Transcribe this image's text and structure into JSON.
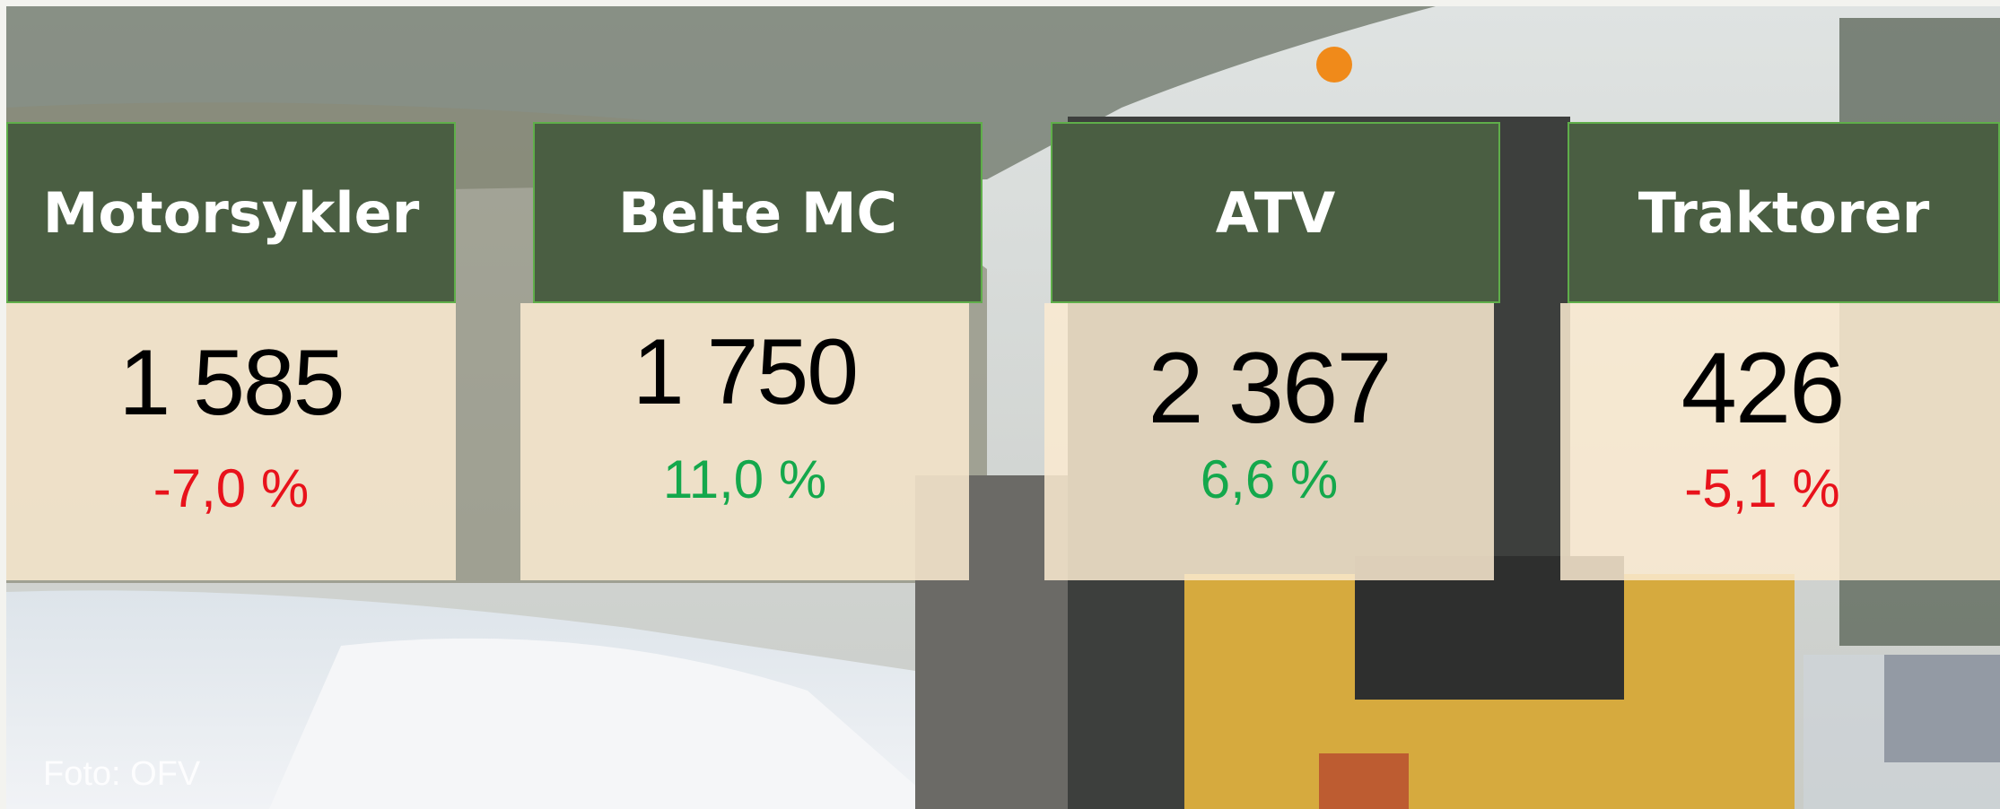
{
  "cards": [
    {
      "title": "Motorsykler",
      "value": "1 585",
      "change": "-7,0 %",
      "trend": "down"
    },
    {
      "title": "Belte MC",
      "value": "1 750",
      "change": "11,0 %",
      "trend": "up"
    },
    {
      "title": "ATV",
      "value": "2 367",
      "change": "6,6 %",
      "trend": "up"
    },
    {
      "title": "Traktorer",
      "value": "426",
      "change": "-5,1 %",
      "trend": "down"
    }
  ],
  "credit": "Foto: OFV"
}
